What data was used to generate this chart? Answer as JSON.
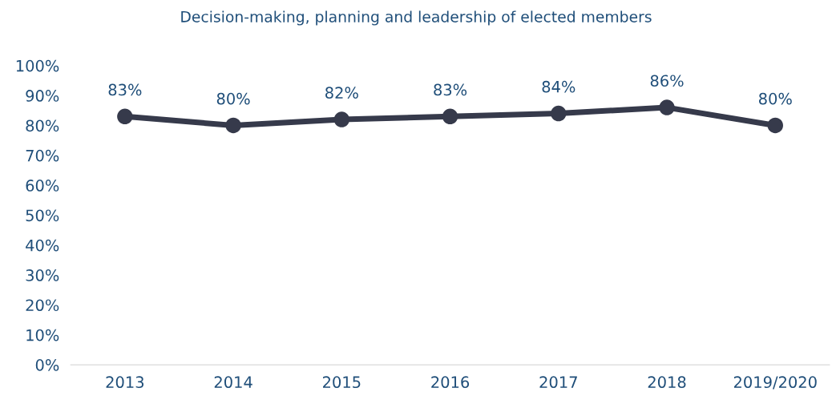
{
  "chart_data": {
    "type": "line",
    "title": "Decision-making, planning and leadership of elected members",
    "categories": [
      "2013",
      "2014",
      "2015",
      "2016",
      "2017",
      "2018",
      "2019/2020"
    ],
    "series": [
      {
        "color": "#363a4b",
        "values": [
          83,
          80,
          82,
          83,
          84,
          86,
          80
        ],
        "value_labels": [
          "83%",
          "80%",
          "82%",
          "83%",
          "84%",
          "86%",
          "80%"
        ]
      }
    ],
    "ylim": [
      0,
      100
    ],
    "yticks": [
      {
        "value": 0,
        "label": "0%"
      },
      {
        "value": 10,
        "label": "10%"
      },
      {
        "value": 20,
        "label": "20%"
      },
      {
        "value": 30,
        "label": "30%"
      },
      {
        "value": 40,
        "label": "40%"
      },
      {
        "value": 50,
        "label": "50%"
      },
      {
        "value": 60,
        "label": "60%"
      },
      {
        "value": 70,
        "label": "70%"
      },
      {
        "value": 80,
        "label": "80%"
      },
      {
        "value": 90,
        "label": "90%"
      },
      {
        "value": 100,
        "label": "100%"
      }
    ],
    "grid": false,
    "legend": false,
    "marker": "circle",
    "line_style": "solid"
  }
}
